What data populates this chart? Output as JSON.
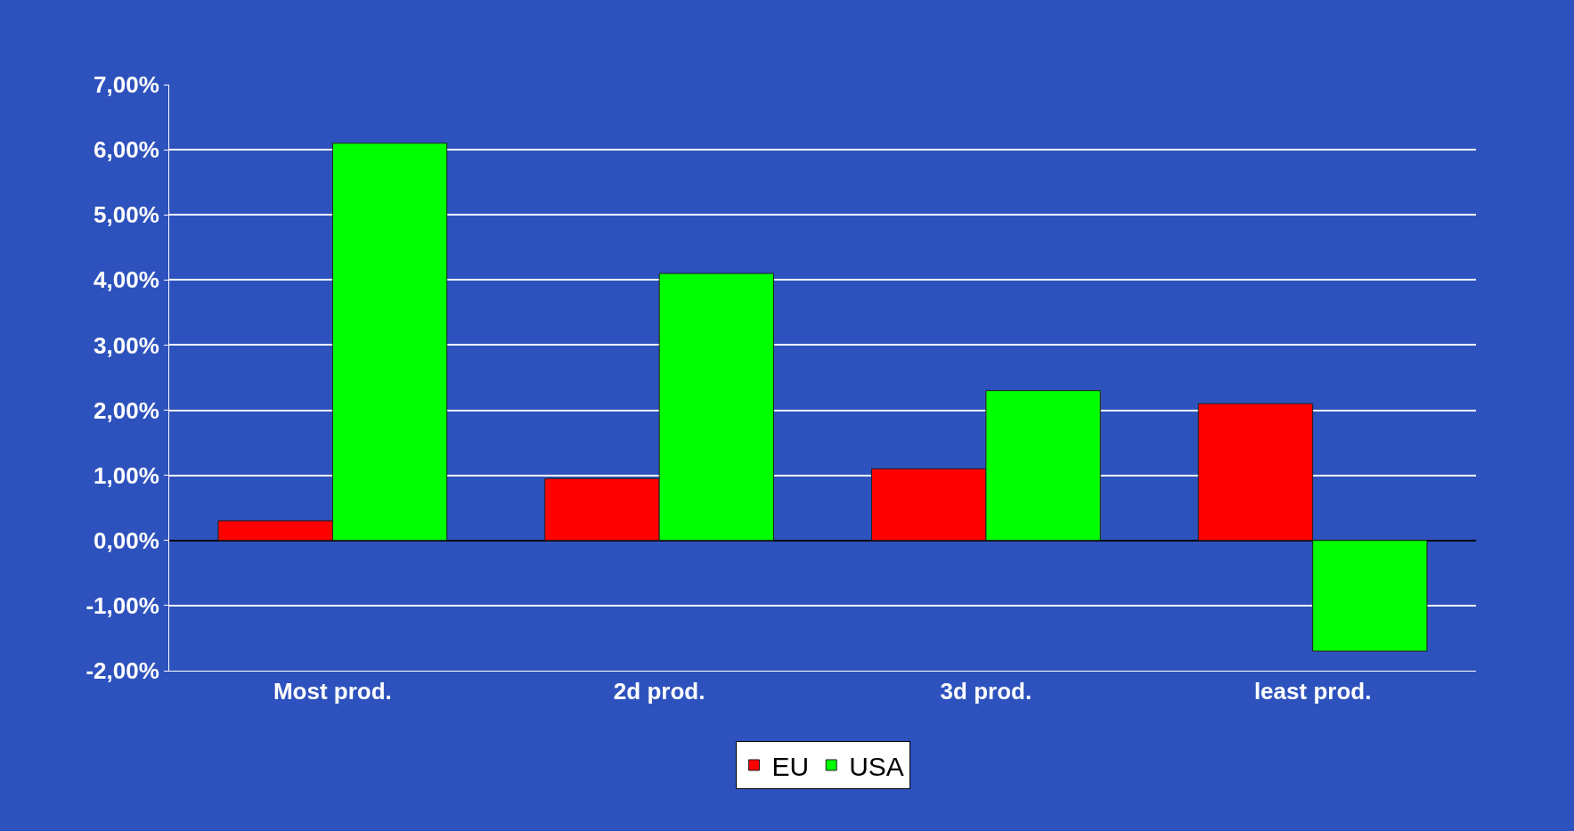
{
  "chart_data": {
    "type": "bar",
    "categories": [
      "Most prod.",
      "2d prod.",
      "3d prod.",
      "least prod."
    ],
    "series": [
      {
        "name": "EU",
        "color": "#ff0000",
        "values": [
          0.3,
          0.95,
          1.1,
          2.1
        ]
      },
      {
        "name": "USA",
        "color": "#00ff00",
        "values": [
          6.1,
          4.1,
          2.3,
          -1.7
        ]
      }
    ],
    "ylim": [
      -2,
      7
    ],
    "yticks": [
      {
        "value": -2,
        "label": "-2,00%"
      },
      {
        "value": -1,
        "label": "-1,00%"
      },
      {
        "value": 0,
        "label": "0,00%"
      },
      {
        "value": 1,
        "label": "1,00%"
      },
      {
        "value": 2,
        "label": "2,00%"
      },
      {
        "value": 3,
        "label": "3,00%"
      },
      {
        "value": 4,
        "label": "4,00%"
      },
      {
        "value": 5,
        "label": "5,00%"
      },
      {
        "value": 6,
        "label": "6,00%"
      },
      {
        "value": 7,
        "label": "7,00%"
      }
    ],
    "grid": "y",
    "legend": "bottom"
  }
}
